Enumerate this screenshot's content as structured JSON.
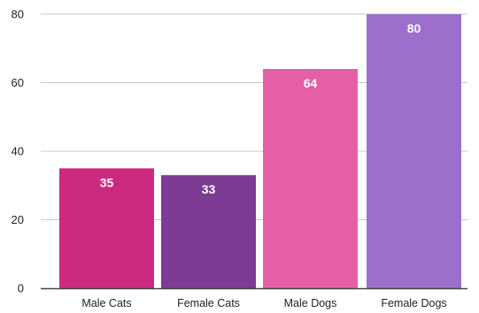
{
  "chart_data": {
    "type": "bar",
    "categories": [
      "Male Cats",
      "Female Cats",
      "Male Dogs",
      "Female Dogs"
    ],
    "values": [
      35,
      33,
      64,
      80
    ],
    "data_labels": [
      "35",
      "33",
      "64",
      "80"
    ],
    "colors": [
      "#cc2a7f",
      "#7e3b93",
      "#e55fa6",
      "#9b6fcb"
    ],
    "ylim": [
      0,
      80
    ],
    "yticks": [
      0,
      20,
      40,
      60,
      80
    ],
    "title": "",
    "xlabel": "",
    "ylabel": "",
    "grid": true,
    "gridline_color": "#c9c9c9",
    "axis_color": "#444444"
  }
}
